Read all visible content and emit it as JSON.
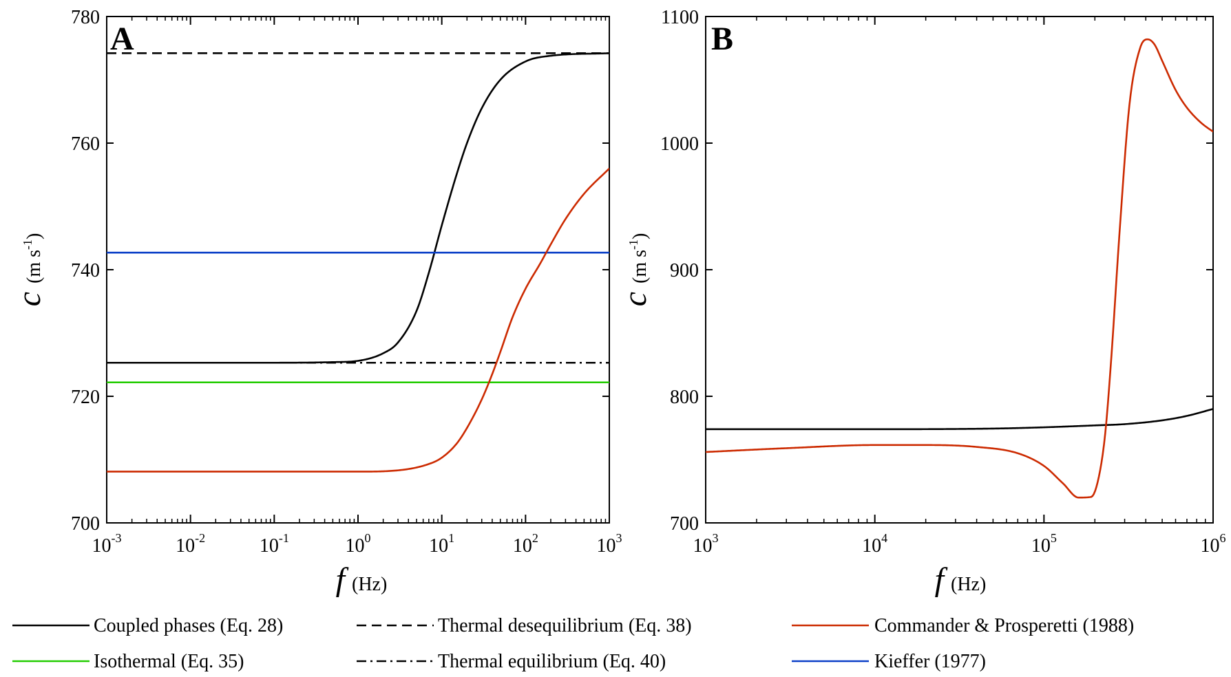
{
  "chart_data": [
    {
      "type": "line",
      "panel": "A",
      "xscale": "log",
      "xlim": [
        0.001,
        1000
      ],
      "ylim": [
        700,
        780
      ],
      "xlabel": "f",
      "xlabel_unit": "(Hz)",
      "ylabel": "c",
      "ylabel_unit_prefix": "(m s",
      "ylabel_unit_sup": "-1",
      "ylabel_unit_suffix": ")",
      "xticks": [
        {
          "base": "10",
          "exp": "-3",
          "value": 0.001
        },
        {
          "base": "10",
          "exp": "-2",
          "value": 0.01
        },
        {
          "base": "10",
          "exp": "-1",
          "value": 0.1
        },
        {
          "base": "10",
          "exp": "0",
          "value": 1
        },
        {
          "base": "10",
          "exp": "1",
          "value": 10
        },
        {
          "base": "10",
          "exp": "2",
          "value": 100
        },
        {
          "base": "10",
          "exp": "3",
          "value": 1000
        }
      ],
      "yticks": [
        "700",
        "720",
        "740",
        "760",
        "780"
      ],
      "series": [
        {
          "name": "Coupled phases (Eq. 28)",
          "color": "#000000",
          "dash": "solid",
          "x": [
            0.001,
            0.1,
            0.5,
            1,
            2,
            3,
            5,
            7,
            10,
            15,
            20,
            30,
            50,
            100,
            200,
            1000
          ],
          "y": [
            725.3,
            725.3,
            725.4,
            725.6,
            726.8,
            728.5,
            733.5,
            739.5,
            747,
            755,
            760,
            765.5,
            770,
            772.9,
            773.8,
            774.2
          ]
        },
        {
          "name": "Thermal desequilibrium (Eq. 38)",
          "color": "#000000",
          "dash": "dash",
          "x": [
            0.001,
            1000
          ],
          "y": [
            774.2,
            774.2
          ]
        },
        {
          "name": "Thermal equilibrium (Eq. 40)",
          "color": "#000000",
          "dash": "dashdot",
          "x": [
            0.001,
            1000
          ],
          "y": [
            725.3,
            725.3
          ]
        },
        {
          "name": "Isothermal  (Eq. 35)",
          "color": "#22cc00",
          "dash": "solid",
          "x": [
            0.001,
            1000
          ],
          "y": [
            722.2,
            722.2
          ]
        },
        {
          "name": "Kieffer (1977)",
          "color": "#0a3fc7",
          "dash": "solid",
          "x": [
            0.001,
            1000
          ],
          "y": [
            742.7,
            742.7
          ]
        },
        {
          "name": "Commander & Prosperetti (1988)",
          "color": "#cc2a00",
          "dash": "solid",
          "x": [
            0.001,
            1,
            3,
            7,
            10,
            15,
            20,
            30,
            40,
            50,
            70,
            100,
            150,
            200,
            300,
            500,
            1000
          ],
          "y": [
            708.1,
            708.1,
            708.3,
            709.3,
            710.3,
            712.5,
            715,
            719.5,
            723.5,
            727,
            732.5,
            737,
            741,
            744,
            748,
            752,
            756
          ]
        }
      ]
    },
    {
      "type": "line",
      "panel": "B",
      "xscale": "log",
      "xlim": [
        1000,
        1000000
      ],
      "ylim": [
        700,
        1100
      ],
      "xlabel": "f",
      "xlabel_unit": "(Hz)",
      "ylabel": "c",
      "ylabel_unit_prefix": "(m s",
      "ylabel_unit_sup": "-1",
      "ylabel_unit_suffix": ")",
      "xticks": [
        {
          "base": "10",
          "exp": "3",
          "value": 1000
        },
        {
          "base": "10",
          "exp": "4",
          "value": 10000
        },
        {
          "base": "10",
          "exp": "5",
          "value": 100000
        },
        {
          "base": "10",
          "exp": "6",
          "value": 1000000
        }
      ],
      "yticks": [
        "700",
        "800",
        "900",
        "1000",
        "1100"
      ],
      "series": [
        {
          "name": "Coupled phases (Eq. 28)",
          "color": "#000000",
          "dash": "solid",
          "x": [
            1000,
            10000,
            50000,
            100000,
            200000,
            300000,
            500000,
            700000,
            1000000
          ],
          "y": [
            774,
            774,
            774.5,
            775.5,
            777,
            778,
            781,
            784.5,
            790
          ]
        },
        {
          "name": "Commander & Prosperetti (1988)",
          "color": "#cc2a00",
          "dash": "solid",
          "x": [
            1000,
            3000,
            10000,
            20000,
            40000,
            70000,
            100000,
            130000,
            160000,
            190000,
            210000,
            230000,
            250000,
            280000,
            320000,
            370000,
            410000,
            450000,
            500000,
            600000,
            700000,
            850000,
            1000000
          ],
          "y": [
            756,
            759,
            761.5,
            761.5,
            760,
            755,
            745,
            731,
            720,
            720.5,
            735,
            770,
            830,
            930,
            1030,
            1075,
            1082,
            1078,
            1065,
            1042,
            1028,
            1016,
            1009
          ]
        }
      ]
    }
  ],
  "legend": {
    "placement": "bottom",
    "entries": [
      {
        "label": "Coupled phases (Eq. 28)",
        "color": "#000000",
        "dash": "solid"
      },
      {
        "label": "Thermal desequilibrium (Eq. 38)",
        "color": "#000000",
        "dash": "dash"
      },
      {
        "label": "Commander & Prosperetti (1988)",
        "color": "#cc2a00",
        "dash": "solid"
      },
      {
        "label": "Isothermal  (Eq. 35)",
        "color": "#22cc00",
        "dash": "solid"
      },
      {
        "label": "Thermal equilibrium (Eq. 40)",
        "color": "#000000",
        "dash": "dashdot"
      },
      {
        "label": "Kieffer (1977)",
        "color": "#0a3fc7",
        "dash": "solid"
      }
    ]
  }
}
